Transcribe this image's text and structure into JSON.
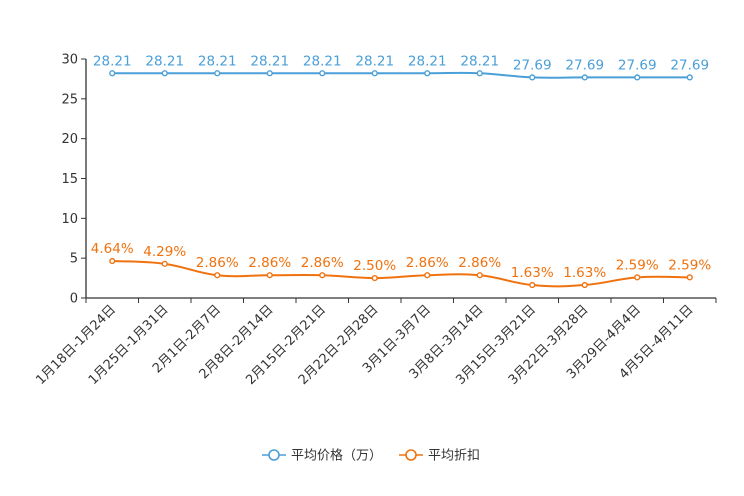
{
  "chart_data": {
    "type": "line",
    "categories": [
      "1月18日-1月24日",
      "1月25日-1月31日",
      "2月1日-2月7日",
      "2月8日-2月14日",
      "2月15日-2月21日",
      "2月22日-2月28日",
      "3月1日-3月7日",
      "3月8日-3月14日",
      "3月15日-3月21日",
      "3月22日-3月28日",
      "3月29日-4月4日",
      "4月5日-4月11日"
    ],
    "series": [
      {
        "name": "平均价格（万）",
        "color": "#4a9fd8",
        "values": [
          28.21,
          28.21,
          28.21,
          28.21,
          28.21,
          28.21,
          28.21,
          28.21,
          27.69,
          27.69,
          27.69,
          27.69
        ],
        "labels": [
          "28.21",
          "28.21",
          "28.21",
          "28.21",
          "28.21",
          "28.21",
          "28.21",
          "28.21",
          "27.69",
          "27.69",
          "27.69",
          "27.69"
        ]
      },
      {
        "name": "平均折扣",
        "color": "#f0720f",
        "values": [
          4.64,
          4.29,
          2.86,
          2.86,
          2.86,
          2.5,
          2.86,
          2.86,
          1.63,
          1.63,
          2.59,
          2.59
        ],
        "labels": [
          "4.64%",
          "4.29%",
          "2.86%",
          "2.86%",
          "2.86%",
          "2.50%",
          "2.86%",
          "2.86%",
          "1.63%",
          "1.63%",
          "2.59%",
          "2.59%"
        ]
      }
    ],
    "yticks": [
      "0",
      "5",
      "10",
      "15",
      "20",
      "25",
      "30"
    ],
    "ylim": [
      0,
      30
    ],
    "title": "",
    "xlabel": "",
    "ylabel": "",
    "legend_position": "bottom-center"
  }
}
